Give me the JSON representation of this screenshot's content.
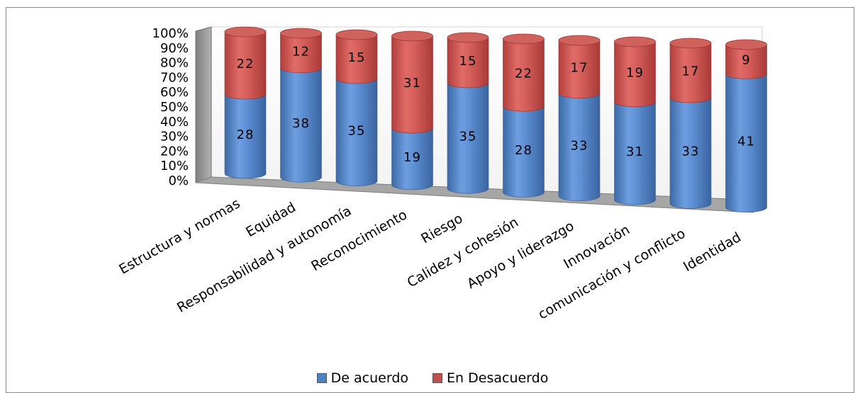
{
  "chart_data": {
    "type": "bar",
    "stacked": "percent",
    "categories": [
      "Estructura y normas",
      "Equidad",
      "Responsabilidad y autonomía",
      "Reconocimiento",
      "Riesgo",
      "Calidez y cohesión",
      "Apoyo y liderazgo",
      "Innovación",
      "comunicación y conflicto",
      "Identidad"
    ],
    "series": [
      {
        "name": "De acuerdo",
        "values": [
          28,
          38,
          35,
          19,
          35,
          28,
          33,
          31,
          33,
          41
        ],
        "color": "#4f81bd"
      },
      {
        "name": "En Desacuerdo",
        "values": [
          22,
          12,
          15,
          31,
          15,
          22,
          17,
          19,
          17,
          9
        ],
        "color": "#c0504d"
      }
    ],
    "y_ticks": [
      "0%",
      "10%",
      "20%",
      "30%",
      "40%",
      "50%",
      "60%",
      "70%",
      "80%",
      "90%",
      "100%"
    ],
    "ylim": [
      0,
      100
    ],
    "legend_position": "bottom"
  }
}
